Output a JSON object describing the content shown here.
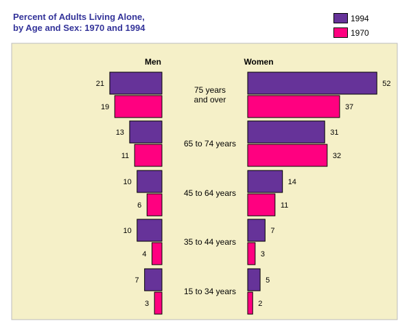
{
  "title_line1": "Percent of Adults Living Alone,",
  "title_line2": "by Age and Sex:  1970 and 1994",
  "colors": {
    "y1994": "#663399",
    "y1970": "#ff0080",
    "panel": "#f5f0c8"
  },
  "chart_data": {
    "type": "bar",
    "orientation": "horizontal",
    "panels": [
      "Men",
      "Women"
    ],
    "categories": [
      "75 years\nand over",
      "65 to 74 years",
      "45 to 64 years",
      "35 to 44 years",
      "15 to 34 years"
    ],
    "series": [
      {
        "name": "1994",
        "men": [
          21,
          13,
          10,
          10,
          7
        ],
        "women": [
          52,
          31,
          14,
          7,
          5
        ]
      },
      {
        "name": "1970",
        "men": [
          19,
          11,
          6,
          4,
          3
        ],
        "women": [
          37,
          32,
          11,
          3,
          2
        ]
      }
    ],
    "legend_position": "top-right"
  }
}
